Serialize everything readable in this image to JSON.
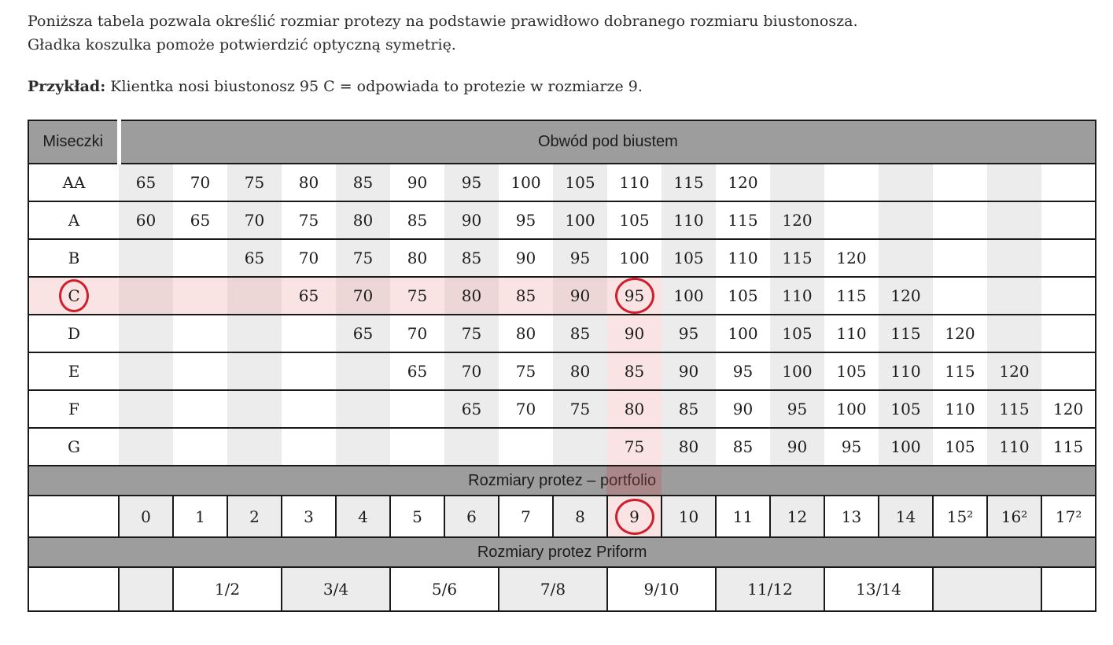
{
  "intro": {
    "line1": "Poniższa tabela pozwala określić rozmiar protezy na podstawie prawidłowo dobranego rozmiaru biustonosza.",
    "line2": "Gładka koszulka pomoże potwierdzić optyczną symetrię.",
    "example_label": "Przykład:",
    "example_text": " Klientka nosi biustonosz 95 C = odpowiada to protezie w rozmiarze 9."
  },
  "table": {
    "headers": {
      "cups": "Miseczki",
      "band": "Obwód pod biustem",
      "portfolio": "Rozmiary protez – portfolio",
      "priform": "Rozmiary protez Priform"
    },
    "columns": 18,
    "highlight_column": 10,
    "cup_rows": [
      {
        "cup": "AA",
        "start": 1,
        "values": [
          65,
          70,
          75,
          80,
          85,
          90,
          95,
          100,
          105,
          110,
          115,
          120
        ]
      },
      {
        "cup": "A",
        "start": 1,
        "values": [
          60,
          65,
          70,
          75,
          80,
          85,
          90,
          95,
          100,
          105,
          110,
          115,
          120
        ]
      },
      {
        "cup": "B",
        "start": 3,
        "values": [
          65,
          70,
          75,
          80,
          85,
          90,
          95,
          100,
          105,
          110,
          115,
          120
        ]
      },
      {
        "cup": "C",
        "start": 4,
        "values": [
          65,
          70,
          75,
          80,
          85,
          90,
          95,
          100,
          105,
          110,
          115,
          120
        ],
        "highlight": true,
        "circle_cup": true,
        "circle_value": 95
      },
      {
        "cup": "D",
        "start": 5,
        "values": [
          65,
          70,
          75,
          80,
          85,
          90,
          95,
          100,
          105,
          110,
          115,
          120
        ]
      },
      {
        "cup": "E",
        "start": 6,
        "values": [
          65,
          70,
          75,
          80,
          85,
          90,
          95,
          100,
          105,
          110,
          115,
          120
        ]
      },
      {
        "cup": "F",
        "start": 7,
        "values": [
          65,
          70,
          75,
          80,
          85,
          90,
          95,
          100,
          105,
          110,
          115,
          120
        ]
      },
      {
        "cup": "G",
        "start": 10,
        "values": [
          75,
          80,
          85,
          90,
          95,
          100,
          105,
          110,
          115
        ]
      }
    ],
    "portfolio_row": {
      "values": [
        "0",
        "1",
        "2",
        "3",
        "4",
        "5",
        "6",
        "7",
        "8",
        "9",
        "10",
        "11",
        "12",
        "13",
        "14",
        "15²",
        "16²",
        "17²"
      ],
      "circled": "9"
    },
    "priform_row": {
      "groups": [
        {
          "label": "",
          "span": 1,
          "shade": true
        },
        {
          "label": "1/2",
          "span": 2,
          "shade": false
        },
        {
          "label": "3/4",
          "span": 2,
          "shade": true
        },
        {
          "label": "5/6",
          "span": 2,
          "shade": false
        },
        {
          "label": "7/8",
          "span": 2,
          "shade": true
        },
        {
          "label": "9/10",
          "span": 2,
          "shade": false
        },
        {
          "label": "11/12",
          "span": 2,
          "shade": true
        },
        {
          "label": "13/14",
          "span": 2,
          "shade": false
        },
        {
          "label": "",
          "span": 2,
          "shade": true
        },
        {
          "label": "",
          "span": 1,
          "shade": false
        }
      ]
    }
  },
  "colors": {
    "band_gray": "#9d9d9d",
    "stripe_gray": "#ececec",
    "highlight_pink_light": "#fae3e3",
    "highlight_pink_dark": "#ecd6d6",
    "circle_red": "#cf1f2f",
    "border_dark": "#1a1a1a"
  }
}
